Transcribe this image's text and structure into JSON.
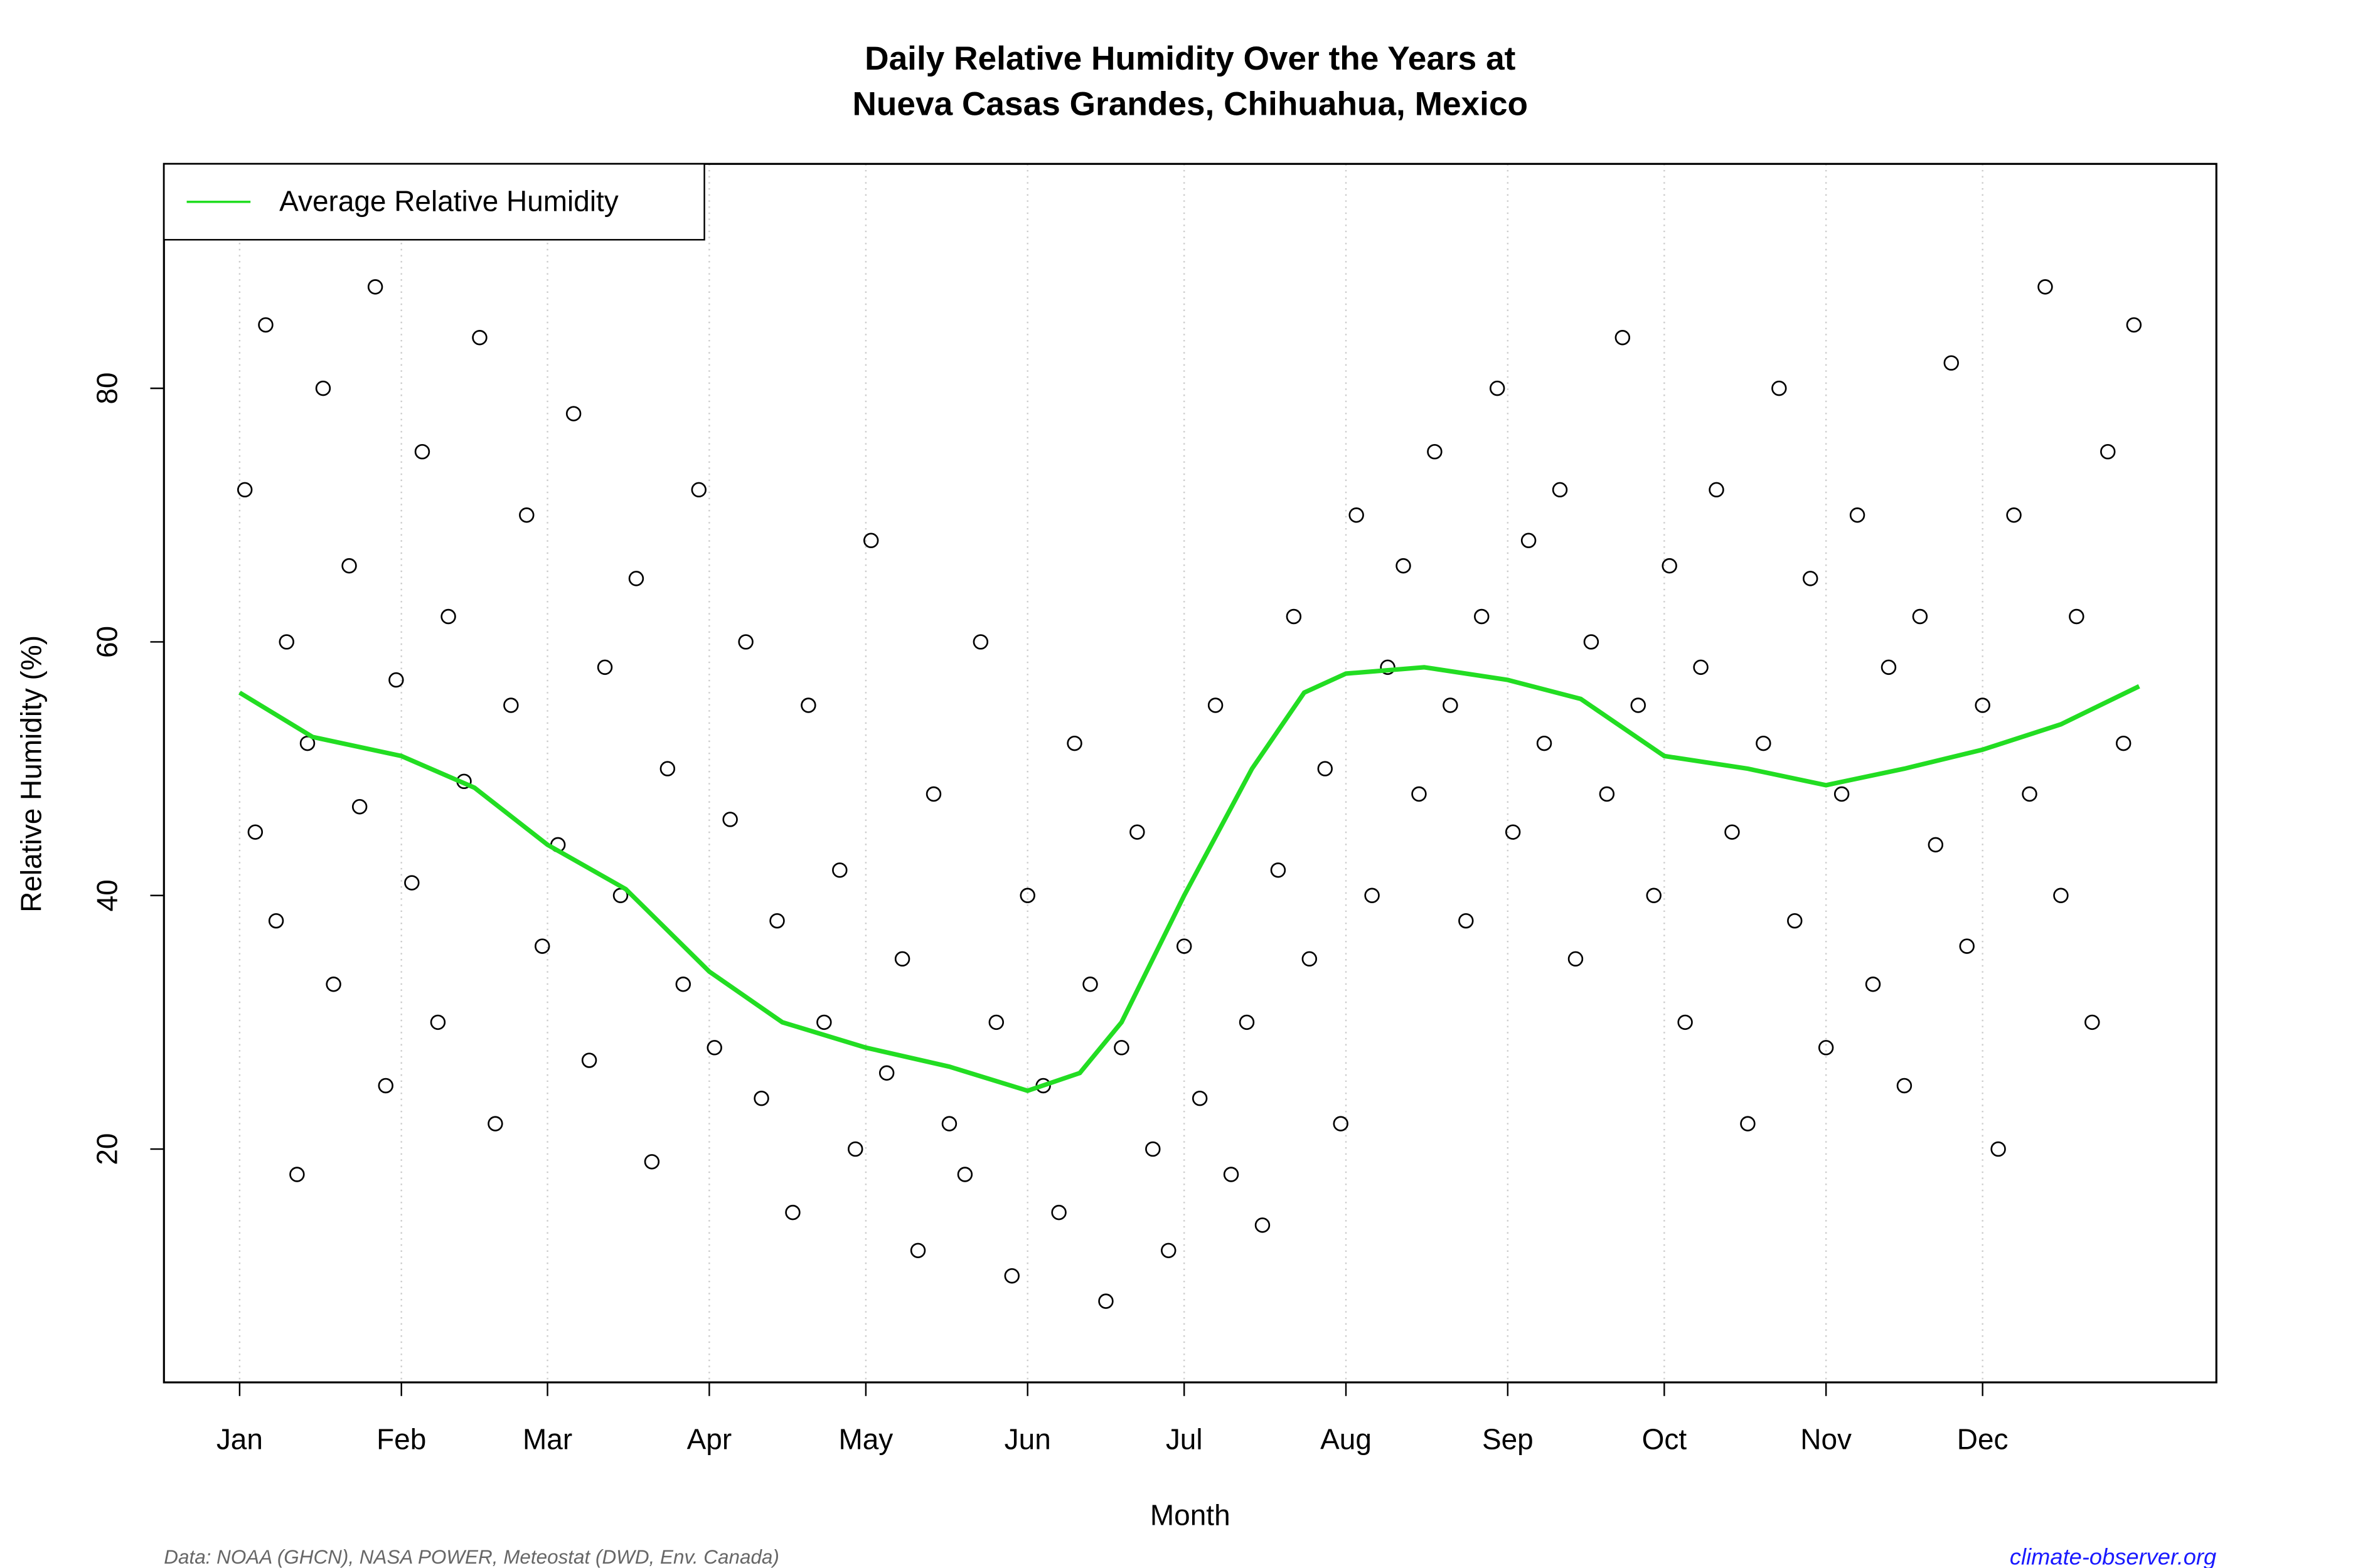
{
  "chart_data": {
    "type": "scatter",
    "title": "Daily Relative Humidity Over the Years at",
    "subtitle": "Nueva Casas Grandes, Chihuahua, Mexico",
    "x_label": "Month",
    "y_label": "Relative Humidity  (%)",
    "source": "Data: NOAA (GHCN), NASA POWER, Meteostat (DWD, Env. Canada)",
    "site": "climate-observer.org",
    "legend": "top-left",
    "grid": true,
    "xlim": [
      -13.5,
      379.8
    ],
    "ylim": [
      1.6,
      97.7
    ],
    "xticks": [
      {
        "value": 1,
        "label": "Jan"
      },
      {
        "value": 32,
        "label": "Feb"
      },
      {
        "value": 60,
        "label": "Mar"
      },
      {
        "value": 91,
        "label": "Apr"
      },
      {
        "value": 121,
        "label": "May"
      },
      {
        "value": 152,
        "label": "Jun"
      },
      {
        "value": 182,
        "label": "Jul"
      },
      {
        "value": 213,
        "label": "Aug"
      },
      {
        "value": 244,
        "label": "Sep"
      },
      {
        "value": 274,
        "label": "Oct"
      },
      {
        "value": 305,
        "label": "Nov"
      },
      {
        "value": 335,
        "label": "Dec"
      }
    ],
    "yticks": [
      20,
      40,
      60,
      80
    ],
    "points": {
      "color": "#000000",
      "x": [
        2,
        4,
        6,
        8,
        10,
        12,
        14,
        17,
        19,
        22,
        24,
        27,
        29,
        31,
        34,
        36,
        39,
        41,
        44,
        47,
        50,
        53,
        56,
        59,
        62,
        65,
        68,
        71,
        74,
        77,
        80,
        83,
        86,
        89,
        92,
        95,
        98,
        101,
        104,
        107,
        110,
        113,
        116,
        119,
        122,
        125,
        128,
        131,
        134,
        137,
        140,
        143,
        146,
        149,
        152,
        155,
        158,
        161,
        164,
        167,
        170,
        173,
        176,
        179,
        182,
        185,
        188,
        191,
        194,
        197,
        200,
        203,
        206,
        209,
        212,
        215,
        218,
        221,
        224,
        227,
        230,
        233,
        236,
        239,
        242,
        245,
        248,
        251,
        254,
        257,
        260,
        263,
        266,
        269,
        272,
        275,
        278,
        281,
        284,
        287,
        290,
        293,
        296,
        299,
        302,
        305,
        308,
        311,
        314,
        317,
        320,
        323,
        326,
        329,
        332,
        335,
        338,
        341,
        344,
        347,
        350,
        353,
        356,
        359,
        362,
        364
      ],
      "y": [
        72,
        45,
        85,
        38,
        60,
        18,
        52,
        80,
        33,
        66,
        47,
        88,
        25,
        57,
        41,
        75,
        30,
        62,
        49,
        84,
        22,
        55,
        70,
        36,
        44,
        78,
        27,
        58,
        40,
        65,
        19,
        50,
        33,
        72,
        28,
        46,
        60,
        24,
        38,
        15,
        55,
        30,
        42,
        20,
        68,
        26,
        35,
        12,
        48,
        22,
        18,
        60,
        30,
        10,
        40,
        25,
        15,
        52,
        33,
        8,
        28,
        45,
        20,
        12,
        36,
        24,
        55,
        18,
        30,
        14,
        42,
        62,
        35,
        50,
        22,
        70,
        40,
        58,
        66,
        48,
        75,
        55,
        38,
        62,
        80,
        45,
        68,
        52,
        72,
        35,
        60,
        48,
        84,
        55,
        40,
        66,
        30,
        58,
        72,
        45,
        22,
        52,
        80,
        38,
        65,
        28,
        48,
        70,
        33,
        58,
        25,
        62,
        44,
        82,
        36,
        55,
        20,
        70,
        48,
        88,
        40,
        62,
        30,
        75,
        52,
        85
      ]
    },
    "average": {
      "name": "Average Relative Humidity",
      "color": "#22dd22",
      "x": [
        1,
        15,
        32,
        46,
        60,
        75,
        91,
        105,
        121,
        137,
        152,
        162,
        170,
        182,
        195,
        205,
        213,
        228,
        244,
        258,
        274,
        290,
        305,
        320,
        335,
        350,
        365
      ],
      "y": [
        56,
        52.5,
        51,
        48.5,
        44,
        40.5,
        34,
        30,
        28,
        26.5,
        24.6,
        26,
        30,
        40,
        50,
        56,
        57.5,
        58,
        57,
        55.5,
        51,
        50,
        48.7,
        50,
        51.5,
        53.5,
        56.5
      ]
    }
  }
}
